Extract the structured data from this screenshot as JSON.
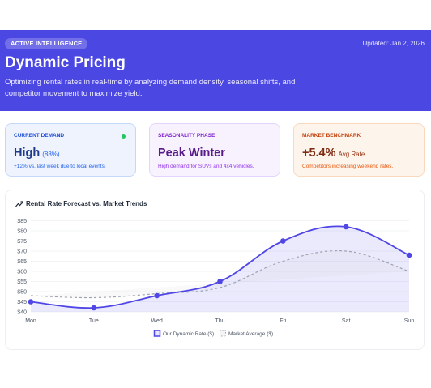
{
  "header": {
    "badge": "ACTIVE INTELLIGENCE",
    "updated": "Updated: Jan 2, 2026",
    "title": "Dynamic Pricing",
    "description": "Optimizing rental rates in real-time by analyzing demand density, seasonal shifts, and competitor movement to maximize yield."
  },
  "cards": {
    "demand": {
      "label": "CURRENT DEMAND",
      "value": "High",
      "sub": "(88%)",
      "note": "+12% vs. last week due to local events."
    },
    "season": {
      "label": "SEASONALITY PHASE",
      "value": "Peak Winter",
      "note": "High demand for SUVs and 4x4 vehicles."
    },
    "market": {
      "label": "MARKET BENCHMARK",
      "value": "+5.4%",
      "sub": "Avg Rate",
      "note": "Competitors increasing weekend rates."
    }
  },
  "colors": {
    "accent": "#4b47e3",
    "status_dot": "#22c55e",
    "market_line": "#9ca3af"
  },
  "chart_data": {
    "type": "line",
    "title": "Rental Rate Forecast vs. Market Trends",
    "categories": [
      "Mon",
      "Tue",
      "Wed",
      "Thu",
      "Fri",
      "Sat",
      "Sun"
    ],
    "series": [
      {
        "name": "Our Dynamic Rate ($)",
        "values": [
          45,
          42,
          48,
          55,
          75,
          82,
          68
        ]
      },
      {
        "name": "Market Average ($)",
        "values": [
          48,
          47,
          49,
          52,
          65,
          70,
          60
        ]
      }
    ],
    "yticks": [
      "$85",
      "$80",
      "$75",
      "$70",
      "$65",
      "$60",
      "$55",
      "$50",
      "$45",
      "$40"
    ],
    "ylim": [
      40,
      85
    ],
    "grid": "horizontal",
    "legend": "bottom"
  }
}
